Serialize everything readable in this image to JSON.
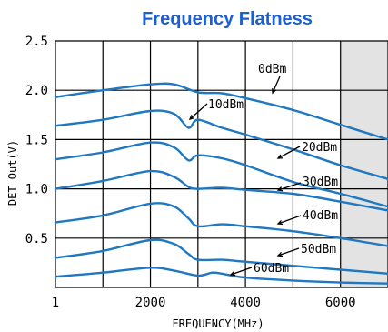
{
  "chart_data": {
    "type": "line",
    "title": "Frequency Flatness",
    "xlabel": "FREQUENCY(MHz)",
    "ylabel": "DET Out(V)",
    "xlim": [
      1,
      7000
    ],
    "ylim": [
      0,
      2.5
    ],
    "x_ticks": [
      1,
      1000,
      2000,
      3000,
      4000,
      5000,
      6000,
      7000
    ],
    "x_tick_labels": [
      {
        "x": 1,
        "label": "1"
      },
      {
        "x": 2000,
        "label": "2000"
      },
      {
        "x": 4000,
        "label": "4000"
      },
      {
        "x": 6000,
        "label": "6000"
      }
    ],
    "y_ticks": [
      0,
      0.5,
      1.0,
      1.5,
      2.0,
      2.5
    ],
    "y_tick_labels": [
      {
        "y": 2.5,
        "label": "2.5"
      },
      {
        "y": 2.0,
        "label": "2.0"
      },
      {
        "y": 1.5,
        "label": "1.5"
      },
      {
        "y": 1.0,
        "label": "1.0"
      },
      {
        "y": 0.5,
        "label": "0.5"
      }
    ],
    "grid": true,
    "shaded_region": {
      "x_from": 6000,
      "x_to": 7000,
      "color": "#e3e3e3"
    },
    "line_color": "#1f78c1",
    "series": [
      {
        "name": "0dBm",
        "x": [
          1,
          1000,
          2000,
          2500,
          3000,
          3500,
          4000,
          5000,
          6000,
          7000
        ],
        "y": [
          1.93,
          2.0,
          2.06,
          2.06,
          1.98,
          1.97,
          1.92,
          1.8,
          1.65,
          1.5
        ]
      },
      {
        "name": "10dBm",
        "x": [
          1,
          1000,
          2000,
          2500,
          2800,
          3000,
          3500,
          4000,
          5000,
          6000,
          7000
        ],
        "y": [
          1.64,
          1.7,
          1.79,
          1.76,
          1.62,
          1.7,
          1.62,
          1.55,
          1.4,
          1.24,
          1.1
        ]
      },
      {
        "name": "20dBm",
        "x": [
          1,
          1000,
          2000,
          2500,
          2800,
          3000,
          3500,
          4000,
          5000,
          6000,
          7000
        ],
        "y": [
          1.3,
          1.37,
          1.47,
          1.42,
          1.29,
          1.34,
          1.31,
          1.24,
          1.07,
          0.95,
          0.82
        ]
      },
      {
        "name": "30dBm",
        "x": [
          1,
          1000,
          2000,
          2500,
          2800,
          3000,
          3500,
          4000,
          5000,
          6000,
          7000
        ],
        "y": [
          1.0,
          1.08,
          1.18,
          1.12,
          1.02,
          1.0,
          1.01,
          0.99,
          0.95,
          0.87,
          0.78
        ]
      },
      {
        "name": "40dBm",
        "x": [
          1,
          1000,
          2000,
          2500,
          2800,
          3000,
          3500,
          4000,
          5000,
          6000,
          7000
        ],
        "y": [
          0.66,
          0.73,
          0.85,
          0.82,
          0.7,
          0.62,
          0.64,
          0.62,
          0.57,
          0.5,
          0.42
        ]
      },
      {
        "name": "50dBm",
        "x": [
          1,
          1000,
          2000,
          2500,
          2800,
          3000,
          3500,
          4000,
          5000,
          6000,
          7000
        ],
        "y": [
          0.3,
          0.37,
          0.48,
          0.44,
          0.34,
          0.28,
          0.28,
          0.26,
          0.22,
          0.18,
          0.14
        ]
      },
      {
        "name": "60dBm",
        "x": [
          1,
          1000,
          2000,
          2500,
          3000,
          3300,
          3500,
          4000,
          5000,
          6000,
          7000
        ],
        "y": [
          0.11,
          0.15,
          0.2,
          0.17,
          0.12,
          0.15,
          0.14,
          0.1,
          0.07,
          0.05,
          0.04
        ]
      }
    ],
    "annotations": [
      {
        "text": "0dBm",
        "series": "0dBm"
      },
      {
        "text": "10dBm",
        "series": "10dBm"
      },
      {
        "text": "20dBm",
        "series": "20dBm"
      },
      {
        "text": "30dBm",
        "series": "30dBm"
      },
      {
        "text": "40dBm",
        "series": "40dBm"
      },
      {
        "text": "50dBm",
        "series": "50dBm"
      },
      {
        "text": "60dBm",
        "series": "60dBm"
      }
    ]
  }
}
